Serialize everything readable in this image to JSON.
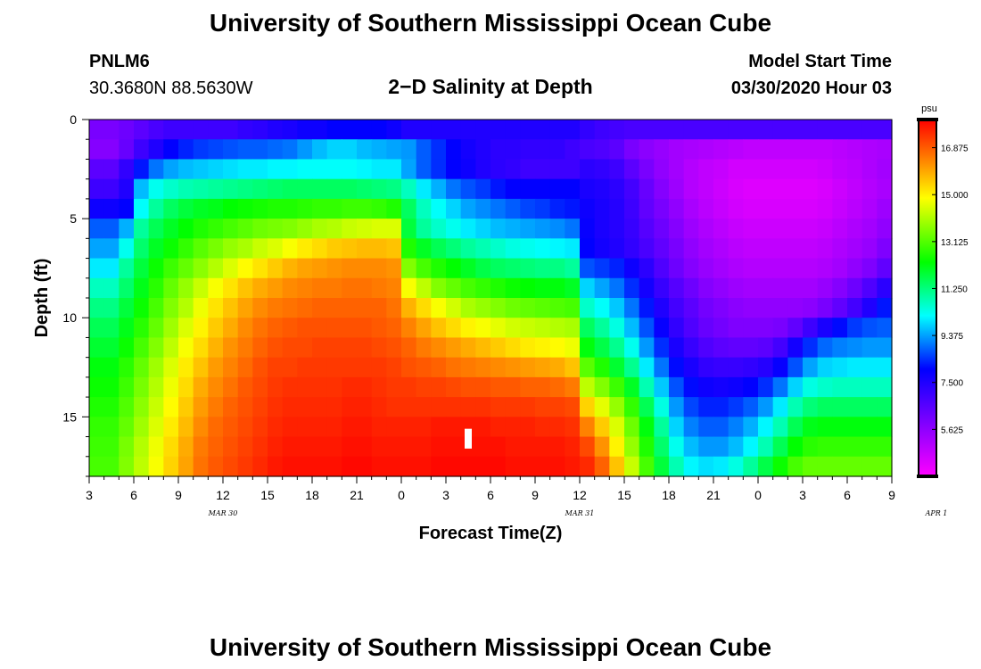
{
  "page": {
    "title_top": "University of Southern Mississippi Ocean Cube",
    "title_bottom": "University of Southern Mississippi Ocean Cube",
    "station_id": "PNLM6",
    "station_coords": "30.3680N 88.5630W",
    "plot_title": "2−D Salinity at Depth",
    "model_start_label": "Model Start Time",
    "model_start_value": "03/30/2020 Hour 03"
  },
  "chart_data": {
    "type": "heatmap",
    "title": "2−D Salinity at Depth",
    "xlabel": "Forecast Time(Z)",
    "ylabel": "Depth (ft)",
    "x_ticks": [
      "3",
      "6",
      "9",
      "12",
      "15",
      "18",
      "21",
      "0",
      "3",
      "6",
      "9",
      "12",
      "15",
      "18",
      "21",
      "0",
      "3",
      "6",
      "9"
    ],
    "x_range_hours": [
      0,
      54
    ],
    "date_labels": [
      {
        "text": "MAR 30",
        "hour": 9
      },
      {
        "text": "MAR 31",
        "hour": 33
      },
      {
        "text": "APR 1",
        "hour": 57
      }
    ],
    "y_ticks": [
      "0",
      "5",
      "10",
      "15"
    ],
    "ylim": [
      0,
      18
    ],
    "y_inverted": true,
    "colorbar": {
      "unit": "psu",
      "min": 3.75,
      "max": 18.0,
      "ticks": [
        "16.875",
        "15.000",
        "13.125",
        "11.250",
        "9.375",
        "7.500",
        "5.625"
      ],
      "tick_values": [
        16.875,
        15.0,
        13.125,
        11.25,
        9.375,
        7.5,
        5.625
      ]
    },
    "marker": {
      "hour": 25.5,
      "depth_from": 15.6,
      "depth_to": 16.6
    },
    "layers_psu": [
      [
        6.0,
        6.0,
        6.2,
        6.5,
        6.8,
        7.0,
        7.0,
        7.0,
        7.0,
        7.0,
        7.2,
        7.3,
        7.5,
        7.6,
        7.8,
        7.8,
        8.0,
        8.0,
        8.0,
        8.0,
        7.8,
        7.5,
        7.5,
        7.5,
        7.5,
        7.5,
        7.5,
        7.5,
        7.5,
        7.5,
        7.5,
        7.5,
        7.5,
        7.2,
        7.0,
        6.9,
        6.8,
        6.8,
        6.8,
        6.8,
        6.8,
        6.8,
        6.8,
        6.8,
        6.8,
        6.8,
        6.8,
        6.8,
        6.8,
        6.8,
        6.8,
        6.8,
        6.8,
        6.8
      ],
      [
        5.8,
        5.8,
        6.3,
        7.0,
        7.5,
        8.0,
        8.3,
        8.5,
        8.6,
        8.7,
        8.8,
        8.8,
        8.9,
        9.0,
        9.3,
        9.6,
        9.8,
        9.8,
        9.6,
        9.5,
        9.4,
        9.3,
        8.8,
        8.4,
        8.0,
        7.7,
        7.5,
        7.3,
        7.3,
        7.2,
        7.2,
        7.2,
        7.0,
        6.8,
        6.7,
        6.5,
        6.0,
        5.7,
        5.5,
        5.3,
        5.2,
        5.1,
        5.0,
        4.9,
        4.8,
        4.8,
        4.8,
        4.8,
        4.8,
        4.8,
        4.9,
        5.0,
        5.1,
        5.2
      ],
      [
        6.5,
        6.5,
        7.2,
        8.2,
        9.0,
        9.4,
        9.6,
        9.7,
        9.8,
        9.9,
        10.0,
        10.0,
        10.1,
        10.1,
        10.2,
        10.2,
        10.2,
        10.2,
        10.1,
        10.0,
        10.0,
        9.4,
        8.8,
        8.4,
        8.0,
        7.8,
        7.5,
        7.3,
        7.2,
        7.0,
        7.0,
        7.0,
        7.0,
        7.3,
        7.2,
        7.0,
        6.5,
        6.0,
        5.6,
        5.3,
        5.0,
        4.8,
        4.7,
        4.5,
        4.5,
        4.5,
        4.5,
        4.5,
        4.5,
        4.6,
        4.8,
        4.9,
        5.1,
        5.3
      ],
      [
        7.0,
        7.0,
        7.5,
        9.6,
        10.3,
        10.6,
        10.8,
        10.9,
        11.0,
        11.1,
        11.2,
        11.3,
        11.4,
        11.5,
        11.5,
        11.5,
        11.5,
        11.5,
        11.4,
        11.3,
        11.2,
        10.7,
        10.0,
        9.5,
        9.0,
        8.7,
        8.5,
        8.2,
        8.0,
        8.0,
        8.0,
        8.0,
        8.0,
        7.6,
        7.5,
        7.3,
        6.9,
        6.3,
        5.8,
        5.4,
        5.0,
        4.8,
        4.6,
        4.4,
        4.3,
        4.3,
        4.3,
        4.3,
        4.3,
        4.4,
        4.6,
        4.8,
        5.0,
        5.2
      ],
      [
        7.8,
        7.8,
        8.0,
        10.2,
        11.0,
        11.5,
        11.8,
        12.0,
        12.1,
        12.3,
        12.4,
        12.5,
        12.6,
        12.6,
        12.7,
        12.8,
        12.8,
        12.9,
        12.9,
        12.8,
        12.6,
        11.5,
        10.7,
        10.2,
        9.8,
        9.4,
        9.2,
        9.0,
        8.8,
        8.6,
        8.5,
        8.3,
        8.2,
        7.8,
        7.6,
        7.4,
        7.0,
        6.4,
        6.0,
        5.6,
        5.2,
        4.9,
        4.7,
        4.5,
        4.4,
        4.4,
        4.4,
        4.4,
        4.4,
        4.5,
        4.7,
        4.9,
        5.1,
        5.4
      ],
      [
        8.8,
        8.8,
        9.5,
        11.0,
        11.6,
        12.0,
        12.3,
        12.6,
        12.8,
        13.0,
        13.2,
        13.4,
        13.5,
        13.6,
        13.8,
        14.0,
        14.1,
        14.3,
        14.4,
        14.5,
        14.5,
        11.8,
        11.0,
        10.6,
        10.3,
        10.0,
        9.8,
        9.6,
        9.5,
        9.4,
        9.3,
        9.2,
        9.0,
        7.9,
        7.6,
        7.4,
        7.1,
        6.6,
        6.2,
        5.8,
        5.4,
        5.1,
        4.9,
        4.7,
        4.6,
        4.6,
        4.6,
        4.6,
        4.6,
        4.7,
        4.9,
        5.1,
        5.3,
        5.6
      ],
      [
        9.4,
        9.4,
        10.3,
        11.4,
        12.0,
        12.4,
        12.8,
        13.2,
        13.5,
        13.8,
        14.0,
        14.3,
        14.5,
        14.8,
        15.1,
        15.3,
        15.5,
        15.6,
        15.7,
        15.7,
        15.6,
        12.6,
        12.0,
        11.6,
        11.3,
        11.0,
        10.8,
        10.6,
        10.4,
        10.3,
        10.2,
        10.1,
        10.0,
        8.0,
        7.7,
        7.5,
        7.2,
        6.8,
        6.4,
        6.0,
        5.6,
        5.3,
        5.1,
        4.9,
        4.8,
        4.8,
        4.8,
        4.8,
        4.8,
        4.9,
        5.1,
        5.3,
        5.5,
        5.9
      ],
      [
        10.0,
        10.0,
        11.0,
        11.8,
        12.4,
        12.9,
        13.3,
        13.7,
        14.1,
        14.5,
        14.9,
        15.2,
        15.5,
        15.8,
        16.0,
        16.1,
        16.2,
        16.3,
        16.3,
        16.3,
        16.2,
        13.6,
        13.0,
        12.6,
        12.3,
        12.0,
        11.7,
        11.5,
        11.4,
        11.3,
        11.2,
        11.2,
        11.0,
        8.7,
        8.5,
        8.3,
        7.8,
        7.3,
        6.7,
        6.2,
        5.8,
        5.5,
        5.3,
        5.1,
        5.0,
        5.0,
        5.0,
        5.0,
        5.0,
        5.1,
        5.3,
        5.6,
        5.9,
        6.4
      ],
      [
        10.7,
        10.7,
        11.4,
        12.1,
        12.7,
        13.3,
        13.8,
        14.3,
        14.8,
        15.2,
        15.6,
        15.9,
        16.1,
        16.3,
        16.4,
        16.5,
        16.5,
        16.6,
        16.6,
        16.5,
        16.4,
        14.8,
        14.2,
        13.6,
        13.3,
        13.0,
        12.8,
        12.6,
        12.4,
        12.3,
        12.2,
        12.2,
        12.0,
        9.8,
        9.4,
        9.0,
        8.4,
        7.7,
        7.1,
        6.6,
        6.2,
        5.8,
        5.6,
        5.4,
        5.3,
        5.3,
        5.3,
        5.3,
        5.3,
        5.5,
        5.8,
        6.2,
        6.7,
        7.3
      ],
      [
        11.2,
        11.2,
        11.8,
        12.4,
        13.0,
        13.6,
        14.1,
        14.7,
        15.2,
        15.6,
        16.0,
        16.3,
        16.5,
        16.6,
        16.7,
        16.8,
        16.8,
        16.8,
        16.8,
        16.8,
        16.6,
        15.8,
        15.3,
        14.8,
        14.4,
        14.0,
        13.8,
        13.6,
        13.4,
        13.3,
        13.2,
        13.1,
        13.0,
        10.6,
        10.2,
        9.7,
        9.0,
        8.2,
        7.5,
        6.9,
        6.5,
        6.1,
        5.9,
        5.7,
        5.6,
        5.6,
        5.6,
        5.6,
        5.7,
        6.0,
        6.4,
        6.9,
        7.5,
        8.2
      ],
      [
        11.6,
        11.6,
        12.1,
        12.7,
        13.3,
        13.9,
        14.5,
        15.0,
        15.5,
        15.9,
        16.3,
        16.6,
        16.8,
        16.9,
        17.0,
        17.0,
        17.0,
        17.0,
        17.0,
        16.9,
        16.8,
        16.4,
        16.0,
        15.6,
        15.3,
        15.0,
        14.8,
        14.6,
        14.4,
        14.3,
        14.2,
        14.1,
        14.0,
        11.5,
        11.0,
        10.4,
        9.6,
        8.7,
        7.9,
        7.2,
        6.7,
        6.3,
        6.1,
        5.9,
        5.9,
        5.9,
        6.0,
        6.4,
        7.0,
        7.6,
        8.1,
        8.5,
        8.7,
        8.8
      ],
      [
        11.9,
        11.9,
        12.4,
        13.0,
        13.6,
        14.2,
        14.8,
        15.3,
        15.8,
        16.2,
        16.5,
        16.8,
        17.0,
        17.1,
        17.1,
        17.2,
        17.2,
        17.2,
        17.2,
        17.1,
        17.0,
        16.8,
        16.5,
        16.3,
        16.1,
        15.9,
        15.7,
        15.5,
        15.3,
        15.1,
        15.0,
        14.9,
        14.7,
        12.2,
        11.7,
        11.1,
        10.3,
        9.3,
        8.4,
        7.6,
        7.1,
        6.7,
        6.5,
        6.4,
        6.4,
        6.5,
        6.9,
        7.7,
        8.4,
        8.9,
        9.1,
        9.2,
        9.3,
        9.3
      ],
      [
        12.2,
        12.2,
        12.7,
        13.3,
        13.9,
        14.5,
        15.1,
        15.6,
        16.1,
        16.4,
        16.7,
        17.0,
        17.2,
        17.2,
        17.3,
        17.3,
        17.3,
        17.3,
        17.3,
        17.3,
        17.2,
        17.0,
        16.9,
        16.8,
        16.6,
        16.5,
        16.4,
        16.3,
        16.2,
        16.1,
        16.0,
        15.9,
        15.6,
        13.2,
        12.6,
        11.9,
        11.1,
        10.0,
        9.0,
        8.1,
        7.6,
        7.2,
        7.1,
        7.1,
        7.2,
        7.4,
        7.9,
        8.7,
        9.4,
        9.8,
        9.9,
        10.0,
        10.0,
        10.0
      ],
      [
        12.4,
        12.4,
        12.9,
        13.5,
        14.1,
        14.7,
        15.3,
        15.9,
        16.3,
        16.6,
        16.9,
        17.1,
        17.3,
        17.4,
        17.4,
        17.4,
        17.4,
        17.5,
        17.5,
        17.4,
        17.3,
        17.3,
        17.2,
        17.2,
        17.1,
        17.0,
        17.0,
        16.9,
        16.9,
        16.8,
        16.8,
        16.7,
        16.5,
        14.2,
        13.6,
        12.9,
        12.0,
        10.8,
        9.7,
        8.7,
        8.1,
        7.8,
        7.7,
        7.8,
        8.0,
        8.4,
        9.0,
        9.8,
        10.4,
        10.6,
        10.7,
        10.7,
        10.7,
        10.7
      ],
      [
        12.6,
        12.6,
        13.1,
        13.7,
        14.3,
        14.9,
        15.5,
        16.1,
        16.5,
        16.8,
        17.0,
        17.2,
        17.4,
        17.5,
        17.5,
        17.5,
        17.5,
        17.6,
        17.6,
        17.5,
        17.4,
        17.4,
        17.4,
        17.4,
        17.4,
        17.4,
        17.4,
        17.3,
        17.3,
        17.3,
        17.2,
        17.2,
        17.1,
        15.4,
        14.6,
        13.8,
        12.8,
        11.6,
        10.4,
        9.3,
        8.6,
        8.3,
        8.3,
        8.5,
        8.8,
        9.3,
        10.0,
        10.8,
        11.3,
        11.5,
        11.5,
        11.5,
        11.5,
        11.5
      ],
      [
        12.8,
        12.8,
        13.3,
        13.9,
        14.5,
        15.1,
        15.7,
        16.3,
        16.7,
        16.9,
        17.1,
        17.3,
        17.5,
        17.6,
        17.6,
        17.6,
        17.6,
        17.7,
        17.7,
        17.6,
        17.6,
        17.6,
        17.6,
        17.7,
        17.7,
        17.7,
        17.7,
        17.6,
        17.6,
        17.6,
        17.5,
        17.5,
        17.4,
        16.4,
        15.5,
        14.5,
        13.4,
        12.2,
        11.0,
        9.8,
        9.1,
        8.8,
        8.8,
        9.1,
        9.5,
        10.1,
        10.8,
        11.6,
        12.1,
        12.2,
        12.2,
        12.2,
        12.2,
        12.2
      ],
      [
        12.9,
        12.9,
        13.5,
        14.1,
        14.7,
        15.3,
        15.9,
        16.5,
        16.8,
        17.0,
        17.2,
        17.4,
        17.6,
        17.7,
        17.7,
        17.7,
        17.7,
        17.8,
        17.8,
        17.7,
        17.7,
        17.7,
        17.7,
        17.8,
        17.8,
        17.8,
        17.8,
        17.8,
        17.7,
        17.7,
        17.7,
        17.7,
        17.6,
        17.1,
        16.2,
        15.0,
        13.8,
        12.6,
        11.4,
        10.3,
        9.6,
        9.3,
        9.3,
        9.6,
        10.1,
        10.8,
        11.6,
        12.3,
        12.7,
        12.8,
        12.8,
        12.8,
        12.8,
        12.8
      ],
      [
        13.0,
        13.0,
        13.6,
        14.2,
        14.8,
        15.4,
        16.0,
        16.6,
        16.9,
        17.1,
        17.3,
        17.5,
        17.7,
        17.8,
        17.8,
        17.8,
        17.8,
        17.9,
        17.9,
        17.8,
        17.8,
        17.8,
        17.8,
        17.9,
        17.9,
        17.9,
        17.9,
        17.9,
        17.8,
        17.8,
        17.8,
        17.8,
        17.7,
        17.5,
        16.8,
        15.6,
        14.3,
        13.0,
        11.8,
        10.8,
        10.1,
        9.9,
        10.0,
        10.4,
        11.0,
        11.7,
        12.4,
        13.0,
        13.3,
        13.3,
        13.3,
        13.3,
        13.3,
        13.3
      ]
    ]
  }
}
